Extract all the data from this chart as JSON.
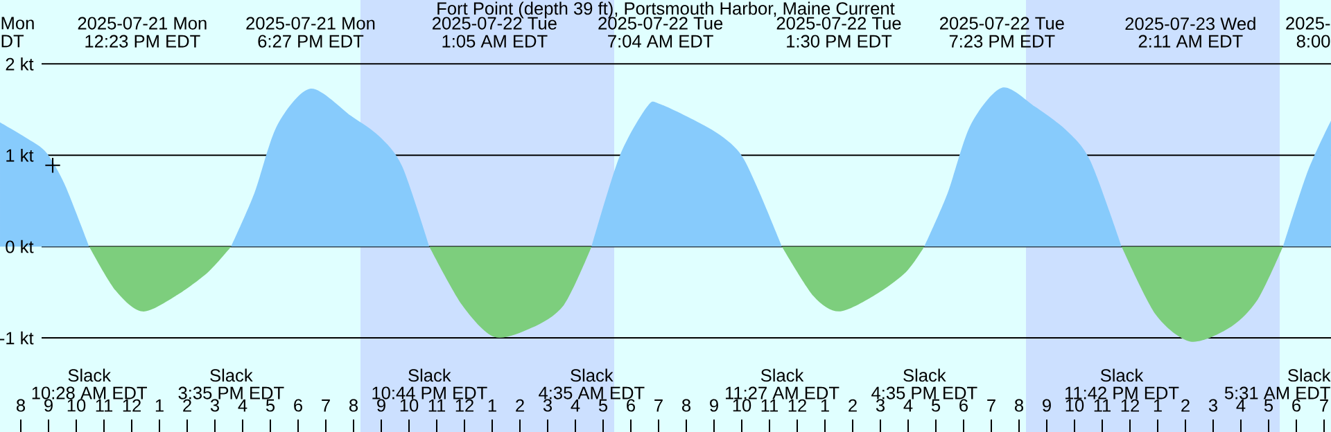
{
  "chart_data": {
    "type": "area",
    "title": "Fort Point (depth 39 ft), Portsmouth Harbor, Maine Current",
    "xlim": [
      "2025-07-21T07:15",
      "2025-07-23T07:15"
    ],
    "ylim": [
      -2.03,
      2.7
    ],
    "xticks": [
      {
        "value": "2025-07-21T08:00",
        "label": "8"
      },
      {
        "value": "2025-07-21T09:00",
        "label": "9"
      },
      {
        "value": "2025-07-21T10:00",
        "label": "10"
      },
      {
        "value": "2025-07-21T11:00",
        "label": "11"
      },
      {
        "value": "2025-07-21T12:00",
        "label": "12"
      },
      {
        "value": "2025-07-21T13:00",
        "label": "1"
      },
      {
        "value": "2025-07-21T14:00",
        "label": "2"
      },
      {
        "value": "2025-07-21T15:00",
        "label": "3"
      },
      {
        "value": "2025-07-21T16:00",
        "label": "4"
      },
      {
        "value": "2025-07-21T17:00",
        "label": "5"
      },
      {
        "value": "2025-07-21T18:00",
        "label": "6"
      },
      {
        "value": "2025-07-21T19:00",
        "label": "7"
      },
      {
        "value": "2025-07-21T20:00",
        "label": "8"
      },
      {
        "value": "2025-07-21T21:00",
        "label": "9"
      },
      {
        "value": "2025-07-21T22:00",
        "label": "10"
      },
      {
        "value": "2025-07-21T23:00",
        "label": "11"
      },
      {
        "value": "2025-07-22T00:00",
        "label": "12"
      },
      {
        "value": "2025-07-22T01:00",
        "label": "1"
      },
      {
        "value": "2025-07-22T02:00",
        "label": "2"
      },
      {
        "value": "2025-07-22T03:00",
        "label": "3"
      },
      {
        "value": "2025-07-22T04:00",
        "label": "4"
      },
      {
        "value": "2025-07-22T05:00",
        "label": "5"
      },
      {
        "value": "2025-07-22T06:00",
        "label": "6"
      },
      {
        "value": "2025-07-22T07:00",
        "label": "7"
      },
      {
        "value": "2025-07-22T08:00",
        "label": "8"
      },
      {
        "value": "2025-07-22T09:00",
        "label": "9"
      },
      {
        "value": "2025-07-22T10:00",
        "label": "10"
      },
      {
        "value": "2025-07-22T11:00",
        "label": "11"
      },
      {
        "value": "2025-07-22T12:00",
        "label": "12"
      },
      {
        "value": "2025-07-22T13:00",
        "label": "1"
      },
      {
        "value": "2025-07-22T14:00",
        "label": "2"
      },
      {
        "value": "2025-07-22T15:00",
        "label": "3"
      },
      {
        "value": "2025-07-22T16:00",
        "label": "4"
      },
      {
        "value": "2025-07-22T17:00",
        "label": "5"
      },
      {
        "value": "2025-07-22T18:00",
        "label": "6"
      },
      {
        "value": "2025-07-22T19:00",
        "label": "7"
      },
      {
        "value": "2025-07-22T20:00",
        "label": "8"
      },
      {
        "value": "2025-07-22T21:00",
        "label": "9"
      },
      {
        "value": "2025-07-22T22:00",
        "label": "10"
      },
      {
        "value": "2025-07-22T23:00",
        "label": "11"
      },
      {
        "value": "2025-07-23T00:00",
        "label": "12"
      },
      {
        "value": "2025-07-23T01:00",
        "label": "1"
      },
      {
        "value": "2025-07-23T02:00",
        "label": "2"
      },
      {
        "value": "2025-07-23T03:00",
        "label": "3"
      },
      {
        "value": "2025-07-23T04:00",
        "label": "4"
      },
      {
        "value": "2025-07-23T05:00",
        "label": "5"
      },
      {
        "value": "2025-07-23T06:00",
        "label": "6"
      },
      {
        "value": "2025-07-23T07:00",
        "label": "7"
      }
    ],
    "yticks": [
      {
        "value": -1,
        "label": "-1 kt"
      },
      {
        "value": 0,
        "label": "0 kt"
      },
      {
        "value": 1,
        "label": "1 kt"
      },
      {
        "value": 2,
        "label": "2 kt"
      }
    ],
    "grid": "y",
    "bands": [
      {
        "axis": "x",
        "from": "2025-07-21T20:15",
        "to": "2025-07-22T05:24",
        "color": "#cce0ff"
      },
      {
        "axis": "x",
        "from": "2025-07-22T20:15",
        "to": "2025-07-23T05:24",
        "color": "#cce0ff"
      }
    ],
    "series": [
      {
        "color": "#87cbfc",
        "x": [
          "2025-07-21T07:15",
          "2025-07-21T08:15",
          "2025-07-21T08:55",
          "2025-07-21T09:35",
          "2025-07-21T10:28",
          "2025-07-21T13:00",
          "2025-07-21T15:35",
          "2025-07-21T16:25",
          "2025-07-21T17:15",
          "2025-07-21T18:27",
          "2025-07-21T19:55",
          "2025-07-21T20:55",
          "2025-07-21T21:45",
          "2025-07-21T22:44",
          "2025-07-22T01:30",
          "2025-07-22T04:35",
          "2025-07-22T05:35",
          "2025-07-22T06:35",
          "2025-07-22T07:04",
          "2025-07-22T08:55",
          "2025-07-22T09:55",
          "2025-07-22T10:35",
          "2025-07-22T11:27",
          "2025-07-22T14:00",
          "2025-07-22T16:35",
          "2025-07-22T17:25",
          "2025-07-22T18:15",
          "2025-07-22T19:23",
          "2025-07-22T20:35",
          "2025-07-22T21:45",
          "2025-07-22T22:35",
          "2025-07-22T23:42",
          "2025-07-23T02:30",
          "2025-07-23T05:31",
          "2025-07-23T06:25",
          "2025-07-23T07:15"
        ],
        "values": [
          1.36,
          1.18,
          1.03,
          0.68,
          0,
          null,
          0,
          0.58,
          1.33,
          1.73,
          1.43,
          1.21,
          0.88,
          0,
          null,
          0,
          0.98,
          1.53,
          1.56,
          1.28,
          1.03,
          0.63,
          0,
          null,
          0,
          0.58,
          1.33,
          1.74,
          1.53,
          1.26,
          0.93,
          0,
          null,
          0,
          0.83,
          1.38
        ]
      },
      {
        "color": "#7dce7d",
        "x": [
          "2025-07-21T10:28",
          "2025-07-21T11:25",
          "2025-07-21T12:23",
          "2025-07-21T13:35",
          "2025-07-21T14:45",
          "2025-07-21T15:35",
          "2025-07-21T19:00",
          "2025-07-21T22:44",
          "2025-07-21T23:55",
          "2025-07-22T01:05",
          "2025-07-22T02:25",
          "2025-07-22T03:35",
          "2025-07-22T04:35",
          "2025-07-22T08:00",
          "2025-07-22T11:27",
          "2025-07-22T12:35",
          "2025-07-22T13:30",
          "2025-07-22T14:45",
          "2025-07-22T15:55",
          "2025-07-22T16:35",
          "2025-07-22T20:00",
          "2025-07-22T23:42",
          "2025-07-23T00:55",
          "2025-07-23T02:11",
          "2025-07-23T03:35",
          "2025-07-23T04:35",
          "2025-07-23T05:31"
        ],
        "values": [
          0,
          -0.48,
          -0.71,
          -0.54,
          -0.28,
          0,
          null,
          0,
          -0.64,
          -0.99,
          -0.89,
          -0.64,
          0,
          null,
          0,
          -0.54,
          -0.71,
          -0.54,
          -0.28,
          0,
          null,
          0,
          -0.74,
          -1.04,
          -0.89,
          -0.59,
          0
        ]
      },
      {
        "type": "scatter",
        "marker": "cross",
        "color": "#000000",
        "x": [
          "2025-07-21T09:09"
        ],
        "values": [
          0.89
        ]
      }
    ],
    "annotations": [
      "Mon",
      "DT",
      "2025-07-21 Mon",
      "12:23 PM EDT",
      "2025-07-21 Mon",
      "6:27 PM EDT",
      "2025-07-22 Tue",
      "1:05 AM EDT",
      "2025-07-22 Tue",
      "7:04 AM EDT",
      "2025-07-22 Tue",
      "1:30 PM EDT",
      "2025-07-22 Tue",
      "7:23 PM EDT",
      "2025-07-23 Wed",
      "2:11 AM EDT",
      "2025-",
      "8:00",
      "Slack",
      "10:28 AM EDT",
      "Slack",
      "3:35 PM EDT",
      "Slack",
      "10:44 PM EDT",
      "Slack",
      "4:35 AM EDT",
      "Slack",
      "11:27 AM EDT",
      "Slack",
      "4:35 PM EDT",
      "Slack",
      "11:42 PM EDT",
      "Slack",
      "5:31 AM EDT"
    ]
  }
}
